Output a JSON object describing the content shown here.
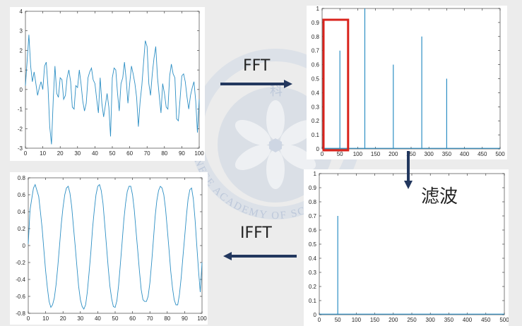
{
  "labels": {
    "fft": "FFT",
    "ifft": "IFFT",
    "filter": "滤波"
  },
  "watermark": {
    "text": "CHINESE ACADEMY OF SCIENCES",
    "visible_text": "INESE ACADEMY OF SC",
    "glyph": "科",
    "color": "#c9d3e3"
  },
  "colors": {
    "signal": "#2d8fc4",
    "arrow": "#22375e",
    "highlight_box": "#d9231c",
    "axis": "#262626"
  },
  "chart_data": [
    {
      "id": "input-signal",
      "type": "line",
      "title": "",
      "xlabel": "",
      "ylabel": "",
      "xlim": [
        0,
        100
      ],
      "ylim": [
        -3,
        4
      ],
      "xticks": [
        "0",
        "10",
        "20",
        "30",
        "40",
        "50",
        "60",
        "70",
        "80",
        "90",
        "100"
      ],
      "yticks": [
        "4",
        "3",
        "2",
        "1",
        "0",
        "-1",
        "-2",
        "-3"
      ],
      "series": [
        {
          "x": [
            0,
            1,
            2,
            3,
            4,
            5,
            6,
            7,
            8,
            9,
            10,
            11,
            12,
            13,
            14,
            15,
            16,
            17,
            18,
            19,
            20,
            21,
            22,
            23,
            24,
            25,
            26,
            27,
            28,
            29,
            30,
            31,
            32,
            33,
            34,
            35,
            36,
            37,
            38,
            39,
            40,
            41,
            42,
            43,
            44,
            45,
            46,
            47,
            48,
            49,
            50,
            51,
            52,
            53,
            54,
            55,
            56,
            57,
            58,
            59,
            60,
            61,
            62,
            63,
            64,
            65,
            66,
            67,
            68,
            69,
            70,
            71,
            72,
            73,
            74,
            75,
            76,
            77,
            78,
            79,
            80,
            81,
            82,
            83,
            84,
            85,
            86,
            87,
            88,
            89,
            90,
            91,
            92,
            93,
            94,
            95,
            96,
            97,
            98,
            99,
            100
          ],
          "y": [
            0.2,
            1.5,
            2.8,
            1.2,
            0.4,
            0.9,
            0.3,
            -0.3,
            0.1,
            0.4,
            0.0,
            1.2,
            1.4,
            0.1,
            -1.9,
            -2.8,
            -0.5,
            1.2,
            -0.2,
            -0.4,
            0.6,
            0.5,
            -0.5,
            -0.3,
            0.6,
            1.0,
            0.4,
            -0.9,
            -1.0,
            0.2,
            0.1,
            1.0,
            0.3,
            -0.6,
            -1.1,
            -0.7,
            0.6,
            0.9,
            1.1,
            0.5,
            0.3,
            -0.5,
            -1.2,
            0.6,
            -0.7,
            -1.4,
            -0.8,
            -0.2,
            -0.9,
            -2.4,
            0.6,
            1.1,
            1.0,
            -0.2,
            -1.1,
            0.3,
            0.6,
            1.4,
            0.5,
            -0.7,
            0.3,
            1.2,
            0.8,
            0.3,
            -0.4,
            -1.9,
            -0.6,
            0.2,
            1.4,
            2.5,
            2.2,
            0.3,
            -0.3,
            0.8,
            1.6,
            2.2,
            0.6,
            -0.3,
            -1.2,
            0.3,
            -0.2,
            -0.9,
            -1.0,
            0.7,
            1.3,
            0.8,
            0.6,
            -1.5,
            -1.6,
            -0.5,
            0.7,
            0.8,
            0.4,
            -0.4,
            -1.0,
            -0.3,
            0.1,
            0.4,
            -0.6,
            -2.2,
            -0.5
          ]
        }
      ]
    },
    {
      "id": "fft-spectrum",
      "type": "bar",
      "title": "",
      "xlabel": "",
      "ylabel": "",
      "xlim": [
        0,
        500
      ],
      "ylim": [
        0,
        1
      ],
      "xticks": [
        "0",
        "50",
        "100",
        "150",
        "200",
        "250",
        "300",
        "350",
        "400",
        "450",
        "500"
      ],
      "yticks": [
        "1",
        "0.9",
        "0.8",
        "0.7",
        "0.6",
        "0.5",
        "0.4",
        "0.3",
        "0.2",
        "0.1",
        "0"
      ],
      "stems": [
        {
          "x": 50,
          "y": 0.7
        },
        {
          "x": 120,
          "y": 1.0
        },
        {
          "x": 200,
          "y": 0.6
        },
        {
          "x": 280,
          "y": 0.8
        },
        {
          "x": 350,
          "y": 0.5
        }
      ],
      "highlight_range": [
        0,
        73
      ]
    },
    {
      "id": "filtered-spectrum",
      "type": "bar",
      "title": "",
      "xlabel": "",
      "ylabel": "",
      "xlim": [
        0,
        500
      ],
      "ylim": [
        0,
        1
      ],
      "xticks": [
        "0",
        "50",
        "100",
        "150",
        "200",
        "250",
        "300",
        "350",
        "400",
        "450",
        "500"
      ],
      "yticks": [
        "1",
        "0.9",
        "0.8",
        "0.7",
        "0.6",
        "0.5",
        "0.4",
        "0.3",
        "0.2",
        "0.1",
        "0"
      ],
      "stems": [
        {
          "x": 50,
          "y": 0.7
        }
      ]
    },
    {
      "id": "reconstructed-signal",
      "type": "line",
      "title": "",
      "xlabel": "",
      "ylabel": "",
      "xlim": [
        0,
        100
      ],
      "ylim": [
        -0.8,
        0.8
      ],
      "xticks": [
        "0",
        "10",
        "20",
        "30",
        "40",
        "50",
        "60",
        "70",
        "80",
        "90",
        "100"
      ],
      "yticks": [
        "0.8",
        "0.6",
        "0.4",
        "0.2",
        "0",
        "-0.2",
        "-0.4",
        "-0.6",
        "-0.8"
      ],
      "series": [
        {
          "x": [
            0,
            1,
            2,
            3,
            4,
            5,
            6,
            7,
            8,
            9,
            10,
            11,
            12,
            13,
            14,
            15,
            16,
            17,
            18,
            19,
            20,
            21,
            22,
            23,
            24,
            25,
            26,
            27,
            28,
            29,
            30,
            31,
            32,
            33,
            34,
            35,
            36,
            37,
            38,
            39,
            40,
            41,
            42,
            43,
            44,
            45,
            46,
            47,
            48,
            49,
            50,
            51,
            52,
            53,
            54,
            55,
            56,
            57,
            58,
            59,
            60,
            61,
            62,
            63,
            64,
            65,
            66,
            67,
            68,
            69,
            70,
            71,
            72,
            73,
            74,
            75,
            76,
            77,
            78,
            79,
            80,
            81,
            82,
            83,
            84,
            85,
            86,
            87,
            88,
            89,
            90,
            91,
            92,
            93,
            94,
            95,
            96,
            97,
            98,
            99,
            100
          ],
          "y": [
            0.02,
            0.42,
            0.55,
            0.68,
            0.72,
            0.65,
            0.58,
            0.4,
            0.2,
            -0.05,
            -0.3,
            -0.5,
            -0.66,
            -0.73,
            -0.7,
            -0.62,
            -0.46,
            -0.25,
            0.0,
            0.25,
            0.45,
            0.6,
            0.68,
            0.7,
            0.62,
            0.46,
            0.22,
            0.0,
            -0.25,
            -0.48,
            -0.64,
            -0.72,
            -0.75,
            -0.7,
            -0.55,
            -0.32,
            -0.08,
            0.2,
            0.42,
            0.6,
            0.7,
            0.72,
            0.65,
            0.5,
            0.26,
            0.0,
            -0.26,
            -0.48,
            -0.63,
            -0.72,
            -0.73,
            -0.65,
            -0.47,
            -0.22,
            0.03,
            0.3,
            0.5,
            0.64,
            0.7,
            0.7,
            0.6,
            0.42,
            0.18,
            -0.06,
            -0.3,
            -0.52,
            -0.64,
            -0.66,
            -0.66,
            -0.6,
            -0.44,
            -0.2,
            0.06,
            0.34,
            0.53,
            0.65,
            0.7,
            0.68,
            0.6,
            0.44,
            0.2,
            -0.05,
            -0.3,
            -0.5,
            -0.64,
            -0.7,
            -0.7,
            -0.58,
            -0.38,
            -0.14,
            0.1,
            0.35,
            0.55,
            0.66,
            0.68,
            0.55,
            0.3,
            0.0,
            -0.3,
            -0.55,
            -0.2
          ]
        }
      ]
    }
  ]
}
